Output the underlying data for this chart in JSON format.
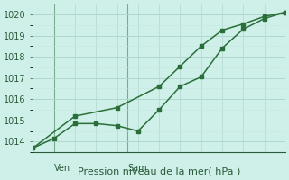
{
  "xlabel": "Pression niveau de la mer( hPa )",
  "bg_color": "#cef0e8",
  "grid_color_major": "#b0d8d0",
  "grid_color_minor": "#c8e8e0",
  "line_color": "#2a6e3a",
  "vline_color": "#7aaa90",
  "tick_color": "#2a5a3a",
  "ylim": [
    1013.5,
    1020.5
  ],
  "yticks": [
    1014,
    1015,
    1016,
    1017,
    1018,
    1019,
    1020
  ],
  "xlim": [
    0,
    12
  ],
  "line1_x": [
    0,
    1,
    2,
    3,
    4,
    5,
    6,
    7,
    8,
    9,
    10,
    11,
    12
  ],
  "line1_y": [
    1013.7,
    1014.15,
    1014.85,
    1014.85,
    1014.75,
    1014.5,
    1015.5,
    1016.6,
    1017.05,
    1018.4,
    1019.3,
    1019.8,
    1020.1
  ],
  "line2_x": [
    0,
    2,
    4,
    6,
    7,
    8,
    9,
    10,
    11,
    12
  ],
  "line2_y": [
    1013.7,
    1015.2,
    1015.6,
    1016.6,
    1017.55,
    1018.5,
    1019.25,
    1019.55,
    1019.9,
    1020.1
  ],
  "ven_x": 1.0,
  "sam_x": 4.5,
  "marker_size": 3.0,
  "marker_style": "s",
  "line_width": 1.1,
  "xlabel_fontsize": 8,
  "tick_fontsize": 7,
  "day_label_fontsize": 7
}
